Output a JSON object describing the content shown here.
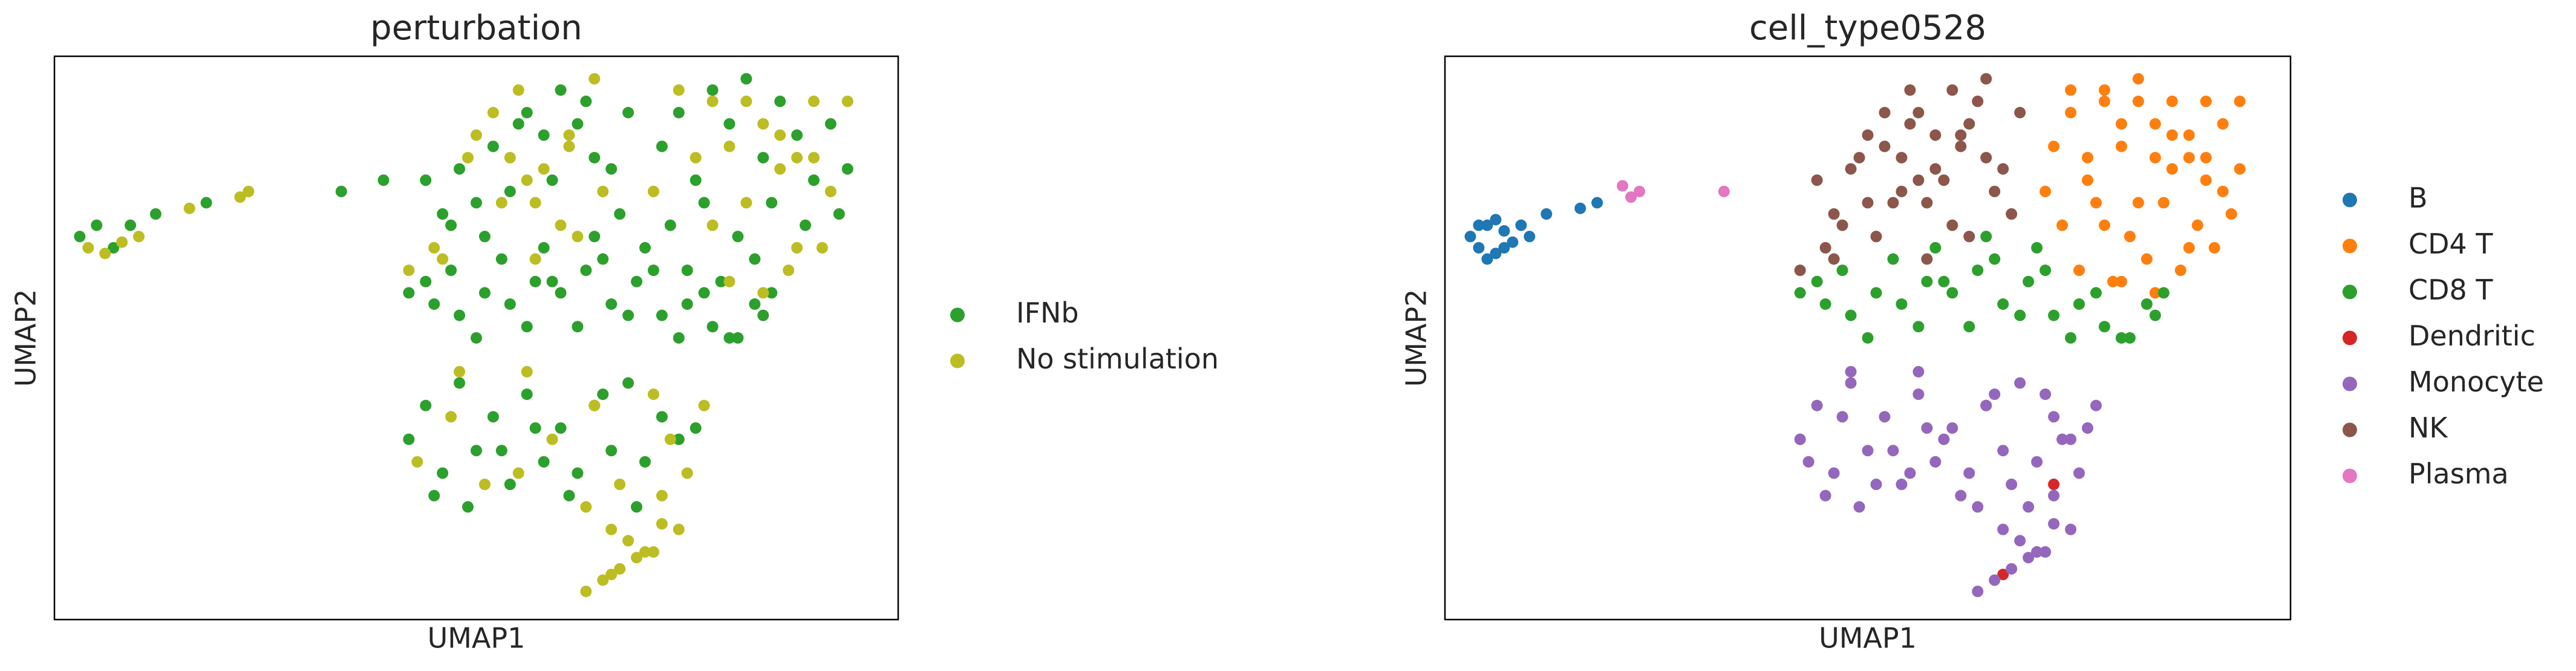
{
  "chart_data": [
    {
      "type": "scatter",
      "title": "perturbation",
      "xlabel": "UMAP1",
      "ylabel": "UMAP2",
      "xlim": [
        0,
        100
      ],
      "ylim": [
        0,
        100
      ],
      "legend": "right",
      "series": [
        {
          "name": "IFNb",
          "color": "#2ca02c",
          "x": [
            3,
            5,
            7,
            9,
            12,
            18,
            34,
            39,
            44,
            46,
            48,
            50,
            52,
            54,
            56,
            58,
            60,
            62,
            64,
            66,
            68,
            47,
            51,
            55,
            59,
            63,
            67,
            72,
            74,
            76,
            78,
            80,
            82,
            84,
            86,
            88,
            90,
            92,
            94,
            73,
            77,
            81,
            85,
            89,
            93,
            75,
            79,
            83,
            42,
            45,
            48,
            51,
            54,
            57,
            60,
            63,
            66,
            69,
            72,
            75,
            78,
            81,
            84,
            47,
            53,
            59,
            65,
            71,
            77,
            83,
            50,
            56,
            62,
            68,
            74,
            80,
            44,
            58,
            70,
            64,
            85,
            42,
            44,
            46,
            48,
            50,
            52,
            54,
            56,
            58,
            60,
            62,
            64,
            66,
            68,
            70,
            72,
            74,
            76,
            45,
            49,
            53,
            57,
            61,
            65,
            69
          ],
          "values": [
            68,
            70,
            66,
            70,
            72,
            74,
            76,
            78,
            78,
            72,
            80,
            74,
            84,
            76,
            90,
            86,
            94,
            88,
            82,
            80,
            90,
            70,
            68,
            88,
            78,
            92,
            72,
            84,
            90,
            78,
            94,
            88,
            96,
            82,
            92,
            86,
            78,
            88,
            80,
            70,
            74,
            68,
            74,
            70,
            72,
            62,
            60,
            64,
            58,
            56,
            54,
            58,
            56,
            60,
            58,
            62,
            56,
            60,
            54,
            56,
            52,
            50,
            54,
            62,
            64,
            60,
            64,
            62,
            58,
            56,
            50,
            52,
            52,
            54,
            50,
            50,
            60,
            66,
            66,
            68,
            58,
            32,
            38,
            26,
            42,
            30,
            36,
            24,
            40,
            28,
            34,
            26,
            38,
            30,
            42,
            28,
            36,
            32,
            34,
            22,
            20,
            30,
            34,
            22,
            40,
            20
          ]
        },
        {
          "name": "No stimulation",
          "color": "#bcbd22",
          "x": [
            4,
            6,
            8,
            10,
            16,
            22,
            23,
            49,
            53,
            57,
            61,
            65,
            45,
            50,
            55,
            60,
            64,
            58,
            62,
            54,
            52,
            57,
            42,
            46,
            56,
            61,
            87,
            91,
            71,
            76,
            80,
            84,
            88,
            92,
            78,
            82,
            86,
            90,
            80,
            84,
            88,
            74,
            78,
            82,
            86,
            90,
            94,
            73,
            77,
            43,
            47,
            51,
            55,
            59,
            63,
            67,
            71,
            75,
            48,
            56,
            64,
            72,
            66,
            68,
            70,
            72,
            74,
            63,
            65,
            67,
            69,
            71,
            66
          ],
          "values": [
            66,
            65,
            67,
            68,
            73,
            75,
            76,
            82,
            74,
            64,
            84,
            76,
            66,
            86,
            94,
            70,
            96,
            80,
            68,
            82,
            90,
            74,
            62,
            64,
            78,
            86,
            62,
            66,
            76,
            82,
            84,
            88,
            82,
            76,
            92,
            74,
            80,
            92,
            60,
            58,
            66,
            94,
            70,
            92,
            86,
            82,
            92,
            32,
            38,
            28,
            36,
            24,
            26,
            32,
            20,
            24,
            40,
            26,
            44,
            44,
            38,
            22,
            16,
            14,
            12,
            17,
            16,
            5,
            7,
            9,
            11,
            12,
            8
          ]
        }
      ]
    },
    {
      "type": "scatter",
      "title": "cell_type0528",
      "xlabel": "UMAP1",
      "ylabel": "UMAP2",
      "xlim": [
        0,
        100
      ],
      "ylim": [
        0,
        100
      ],
      "legend": "right",
      "series": [
        {
          "name": "B",
          "color": "#1f77b4",
          "x": [
            3,
            4,
            5,
            6,
            7,
            8,
            5,
            6,
            4,
            7,
            9,
            10,
            12,
            16,
            18
          ],
          "values": [
            68,
            66,
            70,
            65,
            69,
            67,
            64,
            71,
            70,
            66,
            70,
            68,
            72,
            73,
            74
          ]
        },
        {
          "name": "CD4 T",
          "color": "#ff7f0e",
          "x": [
            72,
            74,
            76,
            78,
            80,
            82,
            84,
            86,
            88,
            90,
            92,
            94,
            73,
            77,
            81,
            85,
            89,
            93,
            75,
            79,
            83,
            87,
            91,
            71,
            76,
            80,
            84,
            88,
            92,
            78,
            82,
            86,
            90,
            80,
            84,
            88,
            74,
            78,
            82,
            86,
            90,
            94
          ],
          "values": [
            84,
            90,
            78,
            94,
            88,
            96,
            82,
            92,
            86,
            78,
            88,
            80,
            70,
            74,
            68,
            74,
            70,
            72,
            62,
            60,
            64,
            62,
            66,
            76,
            82,
            84,
            88,
            82,
            76,
            92,
            74,
            80,
            92,
            60,
            58,
            66,
            94,
            70,
            92,
            86,
            82,
            92
          ]
        },
        {
          "name": "CD8 T",
          "color": "#2ca02c",
          "x": [
            42,
            45,
            48,
            51,
            54,
            57,
            60,
            63,
            66,
            69,
            72,
            75,
            78,
            81,
            84,
            47,
            53,
            59,
            65,
            71,
            77,
            83,
            50,
            56,
            62,
            68,
            74,
            80,
            44,
            58,
            70,
            64,
            85
          ],
          "values": [
            58,
            56,
            54,
            58,
            56,
            60,
            58,
            62,
            56,
            60,
            54,
            56,
            52,
            50,
            54,
            62,
            64,
            60,
            64,
            62,
            58,
            56,
            50,
            52,
            52,
            54,
            50,
            50,
            60,
            66,
            66,
            68,
            58
          ]
        },
        {
          "name": "Dendritic",
          "color": "#d62728",
          "x": [
            72,
            70,
            66
          ],
          "values": [
            24,
            12,
            8
          ]
        },
        {
          "name": "Monocyte",
          "color": "#9467bd",
          "x": [
            42,
            44,
            46,
            48,
            50,
            52,
            54,
            56,
            58,
            60,
            62,
            64,
            66,
            68,
            70,
            72,
            74,
            76,
            45,
            49,
            53,
            57,
            61,
            65,
            69,
            73,
            77,
            43,
            47,
            51,
            55,
            59,
            63,
            67,
            71,
            75,
            48,
            56,
            64,
            72,
            66,
            68,
            70,
            72,
            74,
            63,
            65,
            67,
            69,
            71
          ],
          "values": [
            32,
            38,
            26,
            42,
            30,
            36,
            24,
            40,
            28,
            34,
            26,
            38,
            30,
            42,
            28,
            36,
            32,
            34,
            22,
            20,
            30,
            34,
            22,
            40,
            20,
            32,
            38,
            28,
            36,
            24,
            26,
            32,
            20,
            24,
            40,
            26,
            44,
            44,
            38,
            22,
            16,
            14,
            12,
            17,
            16,
            5,
            7,
            9,
            11,
            12
          ]
        },
        {
          "name": "NK",
          "color": "#8c564b",
          "x": [
            44,
            46,
            48,
            50,
            52,
            54,
            56,
            58,
            60,
            62,
            64,
            66,
            68,
            47,
            51,
            55,
            59,
            63,
            67,
            49,
            53,
            57,
            61,
            65,
            45,
            50,
            55,
            60,
            64,
            58,
            62,
            54,
            52,
            57,
            42,
            46,
            56,
            61
          ],
          "values": [
            78,
            72,
            80,
            74,
            84,
            76,
            90,
            86,
            94,
            88,
            82,
            80,
            90,
            70,
            68,
            88,
            78,
            92,
            72,
            82,
            74,
            64,
            84,
            76,
            66,
            86,
            94,
            70,
            96,
            80,
            68,
            82,
            90,
            74,
            62,
            64,
            78,
            86
          ]
        },
        {
          "name": "Plasma",
          "color": "#e377c2",
          "x": [
            21,
            22,
            23,
            33
          ],
          "values": [
            77,
            75,
            76,
            76
          ]
        }
      ]
    }
  ]
}
